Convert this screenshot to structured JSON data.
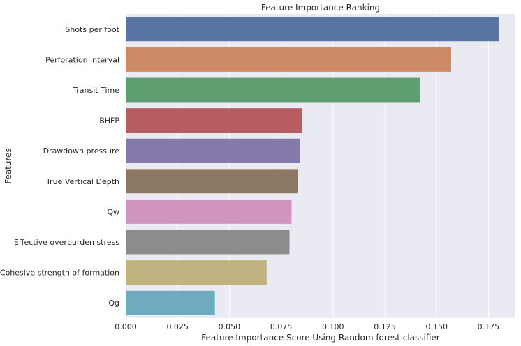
{
  "chart_data": {
    "type": "bar",
    "orientation": "horizontal",
    "title": "Feature Importance Ranking",
    "xlabel": "Feature Importance Score Using Random forest classifier",
    "ylabel": "Features",
    "xlim": [
      0,
      0.188
    ],
    "xticks": [
      "0.000",
      "0.025",
      "0.050",
      "0.075",
      "0.100",
      "0.125",
      "0.150",
      "0.175"
    ],
    "grid": true,
    "categories": [
      "Shots per foot",
      "Perforation interval",
      "Transit Time",
      "BHFP",
      "Drawdown pressure",
      "True Vertical Depth",
      "Qw",
      "Effective overburden stress",
      "Cohesive strength of formation",
      "Qg"
    ],
    "values": [
      0.18,
      0.157,
      0.142,
      0.085,
      0.084,
      0.083,
      0.08,
      0.079,
      0.068,
      0.043
    ],
    "colors": [
      "#5975a4",
      "#cc8963",
      "#5f9e6e",
      "#b55d60",
      "#857aab",
      "#8d7866",
      "#d095bf",
      "#8c8c8c",
      "#c1b37f",
      "#6fabc0"
    ],
    "background": "#eaeaf2"
  }
}
